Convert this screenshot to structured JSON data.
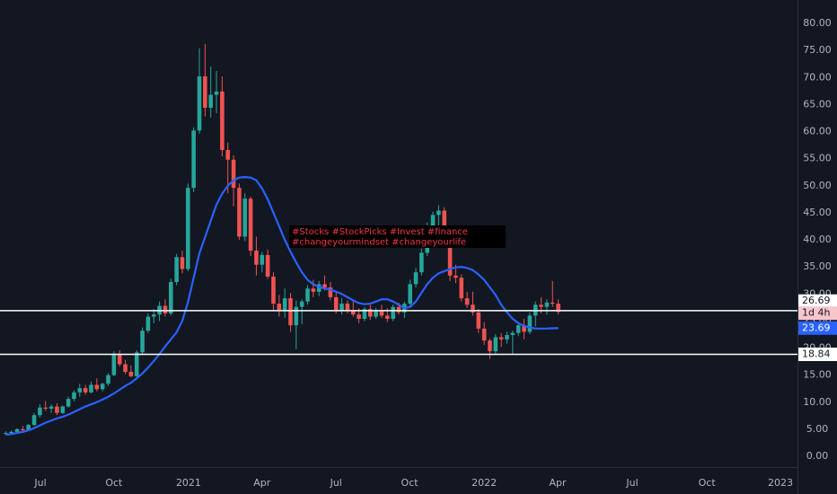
{
  "chart_data": {
    "type": "candlestick",
    "up_color": "#26a69a",
    "down_color": "#ef5350",
    "open": [
      4.2,
      4.3,
      4.5,
      5.0,
      4.8,
      5.8,
      7.6,
      9.0,
      8.8,
      9.2,
      8.0,
      9.2,
      10.6,
      11.8,
      12.6,
      11.8,
      13.2,
      12.4,
      13.4,
      15.0,
      18.8,
      17.0,
      15.6,
      14.8,
      19.2,
      23.2,
      25.8,
      26.2,
      27.8,
      26.4,
      32.2,
      36.8,
      34.6,
      49.6,
      60.2,
      70.2,
      64.4,
      66.8,
      67.4,
      56.6,
      54.8,
      49.6,
      40.6,
      47.6,
      38.0,
      35.4,
      37.2,
      33.2,
      28.2,
      27.0,
      29.2,
      24.2,
      27.6,
      28.6,
      31.0,
      30.4,
      31.8,
      31.2,
      29.4,
      26.8,
      28.2,
      27.0,
      26.2,
      25.4,
      27.2,
      25.8,
      26.8,
      26.0,
      25.4,
      27.6,
      26.6,
      28.2,
      31.8,
      34.0,
      37.6,
      42.4,
      44.6,
      45.4,
      39.6,
      33.4,
      33.0,
      29.2,
      28.0,
      26.6,
      23.6,
      21.4,
      19.4,
      22.0,
      21.6,
      22.4,
      22.8,
      24.2,
      23.0,
      26.0,
      28.0,
      27.6,
      28.4,
      28.2
    ],
    "high": [
      4.6,
      4.8,
      5.2,
      5.6,
      6.0,
      8.0,
      9.6,
      10.2,
      9.6,
      9.8,
      9.4,
      11.0,
      12.2,
      13.4,
      13.2,
      13.8,
      14.4,
      13.6,
      15.4,
      19.4,
      19.6,
      17.8,
      16.8,
      19.6,
      23.8,
      26.4,
      27.2,
      28.6,
      29.0,
      32.8,
      37.4,
      38.0,
      50.4,
      60.8,
      75.4,
      76.2,
      72.0,
      71.2,
      70.2,
      58.0,
      55.6,
      50.4,
      48.6,
      48.0,
      40.6,
      37.8,
      38.2,
      34.0,
      29.8,
      31.0,
      30.2,
      28.8,
      29.0,
      31.6,
      32.6,
      32.4,
      33.4,
      32.2,
      30.4,
      29.2,
      28.8,
      28.6,
      27.4,
      27.6,
      28.0,
      27.4,
      28.0,
      27.4,
      28.0,
      28.4,
      28.6,
      32.6,
      34.8,
      38.4,
      43.2,
      45.2,
      46.4,
      46.0,
      40.4,
      35.4,
      33.6,
      30.4,
      30.4,
      27.2,
      24.8,
      21.8,
      22.6,
      22.8,
      23.0,
      23.2,
      24.6,
      25.4,
      26.6,
      28.6,
      29.4,
      29.0,
      32.4,
      29.0
    ],
    "low": [
      4.0,
      4.1,
      4.3,
      4.6,
      4.7,
      5.6,
      7.2,
      8.4,
      8.0,
      7.6,
      7.8,
      9.0,
      10.2,
      11.0,
      11.4,
      11.6,
      12.0,
      12.0,
      13.0,
      14.8,
      16.6,
      15.2,
      14.6,
      14.4,
      18.8,
      22.8,
      24.6,
      25.0,
      25.8,
      26.0,
      31.6,
      33.8,
      34.2,
      48.8,
      59.6,
      62.8,
      62.6,
      63.4,
      55.4,
      48.6,
      46.2,
      40.0,
      39.8,
      37.0,
      33.4,
      34.0,
      32.8,
      26.8,
      25.8,
      25.6,
      23.0,
      19.8,
      24.4,
      28.0,
      29.4,
      29.6,
      30.6,
      28.8,
      26.4,
      26.2,
      26.4,
      25.8,
      24.6,
      25.0,
      25.2,
      25.4,
      25.6,
      24.8,
      25.0,
      26.2,
      25.6,
      27.8,
      31.2,
      33.4,
      37.0,
      40.6,
      42.4,
      38.8,
      32.4,
      32.0,
      28.6,
      27.4,
      26.0,
      22.8,
      20.6,
      18.0,
      19.0,
      20.2,
      20.8,
      18.8,
      22.2,
      21.6,
      22.6,
      24.0,
      26.4,
      26.2,
      27.6,
      26.2
    ],
    "close": [
      4.3,
      4.5,
      5.0,
      4.8,
      5.8,
      7.6,
      9.0,
      8.8,
      9.2,
      8.0,
      9.2,
      10.6,
      11.8,
      12.6,
      11.8,
      13.2,
      12.4,
      13.4,
      15.0,
      18.8,
      17.0,
      15.6,
      14.8,
      19.2,
      23.2,
      25.8,
      26.2,
      27.8,
      26.4,
      32.2,
      36.8,
      34.6,
      49.6,
      60.2,
      70.2,
      64.4,
      66.8,
      67.4,
      56.6,
      54.8,
      49.6,
      40.6,
      47.6,
      38.0,
      35.4,
      37.2,
      33.2,
      28.2,
      27.0,
      29.2,
      24.2,
      27.6,
      28.6,
      31.0,
      30.4,
      31.8,
      31.2,
      29.4,
      26.8,
      28.2,
      27.0,
      26.2,
      25.4,
      27.2,
      25.8,
      26.8,
      26.0,
      25.4,
      27.6,
      26.6,
      28.2,
      31.8,
      34.0,
      37.6,
      42.4,
      44.6,
      45.4,
      39.6,
      33.4,
      33.0,
      29.2,
      28.0,
      26.6,
      23.6,
      21.4,
      19.4,
      22.0,
      21.6,
      22.4,
      22.8,
      24.2,
      23.0,
      26.0,
      28.0,
      27.6,
      28.4,
      28.2,
      26.69
    ],
    "moving_average": {
      "color": "#2962ff",
      "values": [
        4.0,
        4.1,
        4.3,
        4.5,
        4.8,
        5.2,
        5.7,
        6.2,
        6.6,
        7.0,
        7.3,
        7.7,
        8.2,
        8.7,
        9.2,
        9.6,
        10.0,
        10.5,
        11.0,
        11.6,
        12.3,
        13.0,
        13.6,
        14.4,
        15.3,
        16.4,
        17.6,
        18.9,
        20.3,
        21.6,
        22.9,
        25.0,
        28.5,
        33.0,
        37.5,
        40.5,
        43.5,
        46.5,
        48.5,
        50.0,
        51.0,
        51.5,
        51.6,
        51.5,
        51.0,
        49.5,
        47.5,
        45.0,
        42.5,
        40.0,
        37.8,
        35.8,
        34.0,
        32.6,
        31.8,
        31.3,
        31.0,
        30.8,
        30.4,
        30.0,
        29.4,
        28.8,
        28.3,
        28.1,
        28.2,
        28.6,
        29.0,
        29.0,
        28.6,
        28.0,
        27.4,
        27.6,
        28.6,
        30.2,
        31.8,
        33.0,
        33.8,
        34.2,
        34.6,
        34.9,
        35.0,
        34.8,
        34.4,
        33.6,
        32.6,
        31.2,
        29.8,
        28.0,
        26.6,
        25.4,
        24.6,
        24.1,
        23.8,
        23.6,
        23.6,
        23.6,
        23.65,
        23.69
      ]
    },
    "hlines": [
      26.9,
      18.84
    ],
    "countdown": "1d 4h",
    "annotation": [
      "#Stocks #StockPicks #Invest #finance",
      "#changeyourmindset #changeyourlife"
    ],
    "xlim": [
      -1,
      139
    ],
    "xticks": [
      {
        "value": 6.1,
        "label": "Jul"
      },
      {
        "value": 19.0,
        "label": "Oct"
      },
      {
        "value": 32.1,
        "label": "2021"
      },
      {
        "value": 45.0,
        "label": "Apr"
      },
      {
        "value": 58.0,
        "label": "Jul"
      },
      {
        "value": 70.9,
        "label": "Oct"
      },
      {
        "value": 84.0,
        "label": "2022"
      },
      {
        "value": 96.9,
        "label": "Apr"
      },
      {
        "value": 110.0,
        "label": "Jul"
      },
      {
        "value": 123.1,
        "label": "Oct"
      },
      {
        "value": 136.0,
        "label": "2023"
      }
    ],
    "ylim": [
      0,
      80
    ],
    "yticks": [
      {
        "value": 0,
        "label": "0.00"
      },
      {
        "value": 5,
        "label": "5.00"
      },
      {
        "value": 10,
        "label": "10.00"
      },
      {
        "value": 15,
        "label": "15.00"
      },
      {
        "value": 20,
        "label": "20.00"
      },
      {
        "value": 25,
        "label": "25.00"
      },
      {
        "value": 30,
        "label": "30.00"
      },
      {
        "value": 35,
        "label": "35.00"
      },
      {
        "value": 40,
        "label": "40.00"
      },
      {
        "value": 45,
        "label": "45.00"
      },
      {
        "value": 50,
        "label": "50.00"
      },
      {
        "value": 55,
        "label": "55.00"
      },
      {
        "value": 60,
        "label": "60.00"
      },
      {
        "value": 65,
        "label": "65.00"
      },
      {
        "value": 70,
        "label": "70.00"
      },
      {
        "value": 75,
        "label": "75.00"
      },
      {
        "value": 80,
        "label": "80.00"
      }
    ]
  }
}
